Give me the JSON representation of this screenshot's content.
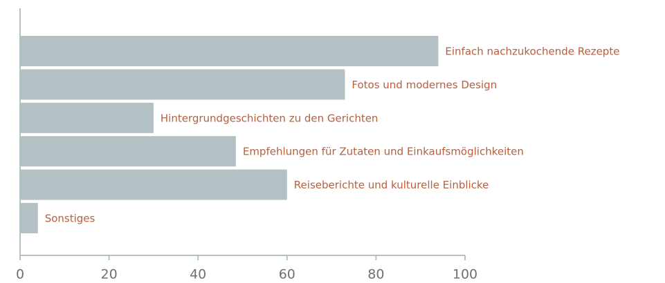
{
  "chart_data": {
    "type": "bar",
    "orientation": "horizontal",
    "categories": [
      "Einfach nachzukochende Rezepte",
      "Fotos und modernes Design",
      "Hintergrundgeschichten zu den Gerichten",
      "Empfehlungen für Zutaten und Einkaufsmöglichkeiten",
      "Reiseberichte und kulturelle Einblicke",
      "Sonstiges"
    ],
    "values": [
      94,
      73,
      30,
      48.5,
      60,
      4
    ],
    "color": "#b3c1c5",
    "label_color": "#b5603f",
    "xlim": [
      0,
      100
    ],
    "xticks": [
      0,
      20,
      40,
      60,
      80,
      100
    ],
    "grid": false
  }
}
